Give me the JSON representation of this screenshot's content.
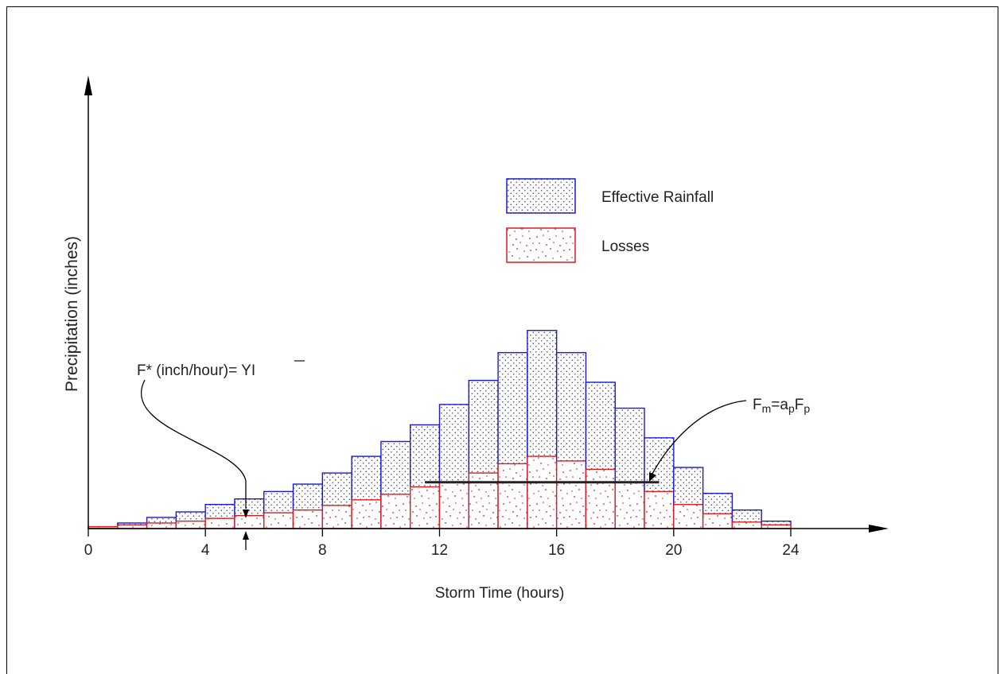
{
  "chart_data": {
    "type": "bar",
    "xlabel": "Storm Time (hours)",
    "ylabel": "Precipitation (inches)",
    "xlim": [
      0,
      24
    ],
    "x_ticks": [
      0,
      4,
      8,
      12,
      16,
      20,
      24
    ],
    "x_tick_labels": [
      "0",
      "4",
      "8",
      "12",
      "16",
      "20",
      "24"
    ],
    "grid": false,
    "legend_position": "top-right",
    "series": [
      {
        "name": "Effective Rainfall",
        "color": "#1a1ad6",
        "pattern": "fine-dots",
        "bin_edges": [
          0,
          1,
          2,
          3,
          4,
          5,
          6,
          7,
          8,
          9,
          10,
          11,
          12,
          13,
          14,
          15,
          16,
          17,
          18,
          19,
          20,
          21,
          22,
          23,
          24
        ],
        "totals": [
          0.1,
          0.3,
          0.6,
          0.9,
          1.3,
          1.6,
          2.0,
          2.4,
          3.0,
          3.9,
          4.7,
          5.6,
          6.7,
          8.0,
          9.5,
          10.7,
          9.5,
          7.9,
          6.5,
          4.9,
          3.3,
          1.9,
          1.0,
          0.4
        ]
      },
      {
        "name": "Losses",
        "color": "#e01b1b",
        "pattern": "random-dots",
        "bin_edges": [
          0,
          1,
          2,
          3,
          4,
          5,
          6,
          7,
          8,
          9,
          10,
          11,
          12,
          13,
          14,
          15,
          16,
          17,
          18,
          19,
          20,
          21,
          22,
          23,
          24
        ],
        "values": [
          0.1,
          0.2,
          0.3,
          0.4,
          0.55,
          0.7,
          0.85,
          1.0,
          1.25,
          1.55,
          1.85,
          2.25,
          2.5,
          3.0,
          3.5,
          3.9,
          3.65,
          3.2,
          2.5,
          2.0,
          1.3,
          0.8,
          0.35,
          0.2
        ]
      }
    ],
    "annotations": [
      {
        "id": "fstar",
        "text_main": "F* (inch/hour)= ",
        "text_y": "Y",
        "text_i": "I",
        "x": 5.4
      },
      {
        "id": "fm",
        "text_main": "F",
        "sub_m": "m",
        "eq": "=a",
        "sub_p1": "p",
        "F2": "F",
        "sub_p2": "p",
        "x": 19.2,
        "line_x": [
          11.5,
          19.5
        ],
        "line_y": 2.5
      }
    ]
  }
}
